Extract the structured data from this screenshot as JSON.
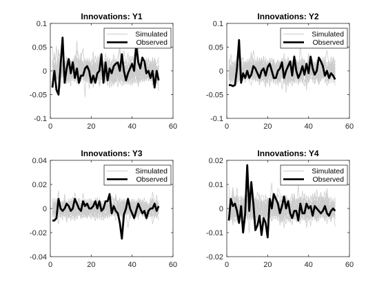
{
  "figure": {
    "background": "#ffffff"
  },
  "colors": {
    "simulated": "#cccccc",
    "observed": "#000000",
    "axes": "#262626"
  },
  "chart_data": [
    {
      "type": "line",
      "title": "Innovations: Y1",
      "xlabel": "",
      "ylabel": "",
      "xlim": [
        0,
        60
      ],
      "ylim": [
        -0.1,
        0.1
      ],
      "xticks": [
        0,
        20,
        40,
        60
      ],
      "yticks": [
        -0.1,
        -0.05,
        0,
        0.05,
        0.1
      ],
      "xtick_labels": [
        "0",
        "20",
        "40",
        "60"
      ],
      "ytick_labels": [
        "-0.1",
        "-0.05",
        "0",
        "0.05",
        "0.1"
      ],
      "legend": {
        "position": "top-right",
        "entries": [
          "Simulated",
          "Observed"
        ]
      },
      "simulated_band": {
        "x": [
          1,
          53
        ],
        "typical_range": [
          -0.05,
          0.05
        ],
        "extreme_range": [
          -0.08,
          0.08
        ]
      },
      "series": [
        {
          "name": "Observed",
          "x": [
            1,
            2,
            3,
            4,
            5,
            6,
            7,
            8,
            9,
            10,
            11,
            12,
            13,
            14,
            15,
            16,
            17,
            18,
            19,
            20,
            21,
            22,
            23,
            24,
            25,
            26,
            27,
            28,
            29,
            30,
            31,
            32,
            33,
            34,
            35,
            36,
            37,
            38,
            39,
            40,
            41,
            42,
            43,
            44,
            45,
            46,
            47,
            48,
            49,
            50,
            51,
            52,
            53
          ],
          "values": [
            -0.035,
            0.0,
            -0.04,
            -0.05,
            0.01,
            0.07,
            -0.025,
            0.005,
            0.025,
            -0.005,
            0.018,
            -0.015,
            0.005,
            -0.025,
            -0.01,
            -0.01,
            0.005,
            0.01,
            0.0,
            -0.025,
            -0.01,
            -0.025,
            -0.005,
            0.0,
            0.035,
            -0.025,
            0.018,
            -0.02,
            0.005,
            -0.005,
            0.01,
            0.015,
            0.018,
            0.0,
            0.035,
            0.0,
            -0.02,
            -0.005,
            0.005,
            0.015,
            0.0,
            0.055,
            0.018,
            0.005,
            0.028,
            0.02,
            -0.005,
            0.0,
            -0.015,
            0.0,
            -0.035,
            0.0,
            -0.02
          ]
        }
      ]
    },
    {
      "type": "line",
      "title": "Innovations: Y2",
      "xlabel": "",
      "ylabel": "",
      "xlim": [
        0,
        60
      ],
      "ylim": [
        -0.1,
        0.1
      ],
      "xticks": [
        0,
        20,
        40,
        60
      ],
      "yticks": [
        -0.1,
        -0.05,
        0,
        0.05,
        0.1
      ],
      "xtick_labels": [
        "0",
        "20",
        "40",
        "60"
      ],
      "ytick_labels": [
        "-0.1",
        "-0.05",
        "0",
        "0.05",
        "0.1"
      ],
      "legend": {
        "position": "top-right",
        "entries": [
          "Simulated",
          "Observed"
        ]
      },
      "simulated_band": {
        "x": [
          1,
          53
        ],
        "typical_range": [
          -0.05,
          0.05
        ],
        "extreme_range": [
          -0.065,
          0.065
        ]
      },
      "series": [
        {
          "name": "Observed",
          "x": [
            1,
            2,
            3,
            4,
            5,
            6,
            7,
            8,
            9,
            10,
            11,
            12,
            13,
            14,
            15,
            16,
            17,
            18,
            19,
            20,
            21,
            22,
            23,
            24,
            25,
            26,
            27,
            28,
            29,
            30,
            31,
            32,
            33,
            34,
            35,
            36,
            37,
            38,
            39,
            40,
            41,
            42,
            43,
            44,
            45,
            46,
            47,
            48,
            49,
            50,
            51,
            52,
            53
          ],
          "values": [
            -0.03,
            -0.03,
            -0.032,
            -0.03,
            0.005,
            0.065,
            -0.025,
            -0.005,
            -0.015,
            0.0,
            -0.015,
            -0.008,
            0.01,
            0.005,
            -0.005,
            -0.015,
            0.0,
            0.005,
            -0.01,
            0.008,
            0.015,
            0.0,
            -0.015,
            -0.015,
            0.0,
            0.005,
            0.018,
            -0.015,
            0.0,
            0.01,
            0.02,
            -0.01,
            0.03,
            0.0,
            -0.015,
            -0.005,
            0.01,
            -0.008,
            0.015,
            -0.005,
            0.03,
            0.005,
            -0.008,
            0.0,
            0.028,
            0.02,
            0.01,
            -0.01,
            0.0,
            -0.015,
            -0.005,
            -0.01,
            -0.018
          ]
        }
      ]
    },
    {
      "type": "line",
      "title": "Innovations: Y3",
      "xlabel": "",
      "ylabel": "",
      "xlim": [
        0,
        60
      ],
      "ylim": [
        -0.04,
        0.04
      ],
      "xticks": [
        0,
        20,
        40,
        60
      ],
      "yticks": [
        -0.04,
        -0.02,
        0,
        0.02,
        0.04
      ],
      "xtick_labels": [
        "0",
        "20",
        "40",
        "60"
      ],
      "ytick_labels": [
        "-0.04",
        "-0.02",
        "0",
        "0.02",
        "0.04"
      ],
      "legend": {
        "position": "top-right",
        "entries": [
          "Simulated",
          "Observed"
        ]
      },
      "simulated_band": {
        "x": [
          1,
          53
        ],
        "typical_range": [
          -0.015,
          0.015
        ],
        "extreme_range": [
          -0.03,
          0.025
        ]
      },
      "series": [
        {
          "name": "Observed",
          "x": [
            1,
            2,
            3,
            4,
            5,
            6,
            7,
            8,
            9,
            10,
            11,
            12,
            13,
            14,
            15,
            16,
            17,
            18,
            19,
            20,
            21,
            22,
            23,
            24,
            25,
            26,
            27,
            28,
            29,
            30,
            31,
            32,
            33,
            34,
            35,
            36,
            37,
            38,
            39,
            40,
            41,
            42,
            43,
            44,
            45,
            46,
            47,
            48,
            49,
            50,
            51,
            52,
            53
          ],
          "values": [
            -0.01,
            -0.01,
            -0.008,
            0.008,
            0.0,
            -0.002,
            0.0,
            0.004,
            0.002,
            -0.002,
            0.0,
            0.008,
            0.004,
            0.0,
            -0.002,
            0.006,
            0.002,
            0.004,
            0.0,
            0.0,
            0.002,
            0.006,
            0.0,
            0.006,
            -0.002,
            0.0,
            0.006,
            0.006,
            0.012,
            -0.004,
            0.002,
            -0.002,
            -0.004,
            -0.012,
            -0.025,
            -0.005,
            0.0,
            0.008,
            0.0,
            -0.004,
            -0.008,
            -0.002,
            0.004,
            0.0,
            -0.004,
            -0.002,
            -0.008,
            -0.002,
            0.0,
            0.0,
            0.004,
            -0.002,
            0.002
          ]
        }
      ]
    },
    {
      "type": "line",
      "title": "Innovations: Y4",
      "xlabel": "",
      "ylabel": "",
      "xlim": [
        0,
        60
      ],
      "ylim": [
        -0.02,
        0.02
      ],
      "xticks": [
        0,
        20,
        40,
        60
      ],
      "yticks": [
        -0.02,
        -0.01,
        0,
        0.01,
        0.02
      ],
      "xtick_labels": [
        "0",
        "20",
        "40",
        "60"
      ],
      "ytick_labels": [
        "-0.02",
        "-0.01",
        "0",
        "0.01",
        "0.02"
      ],
      "legend": {
        "position": "top-right",
        "entries": [
          "Simulated",
          "Observed"
        ]
      },
      "simulated_band": {
        "x": [
          1,
          53
        ],
        "typical_range": [
          -0.01,
          0.01
        ],
        "extreme_range": [
          -0.015,
          0.012
        ]
      },
      "series": [
        {
          "name": "Observed",
          "x": [
            1,
            2,
            3,
            4,
            5,
            6,
            7,
            8,
            9,
            10,
            11,
            12,
            13,
            14,
            15,
            16,
            17,
            18,
            19,
            20,
            21,
            22,
            23,
            24,
            25,
            26,
            27,
            28,
            29,
            30,
            31,
            32,
            33,
            34,
            35,
            36,
            37,
            38,
            39,
            40,
            41,
            42,
            43,
            44,
            45,
            46,
            47,
            48,
            49,
            50,
            51,
            52,
            53
          ],
          "values": [
            -0.005,
            0.004,
            0.001,
            0.002,
            -0.001,
            -0.006,
            0.001,
            -0.01,
            -0.002,
            0.018,
            -0.001,
            0.011,
            0.002,
            -0.009,
            -0.007,
            -0.003,
            -0.011,
            -0.004,
            -0.006,
            -0.012,
            0.004,
            0.0,
            0.006,
            0.004,
            0.002,
            -0.002,
            0.001,
            0.005,
            0.0,
            0.003,
            -0.002,
            -0.004,
            -0.001,
            -0.001,
            -0.005,
            0.002,
            -0.002,
            -0.002,
            0.002,
            0.0,
            0.001,
            -0.003,
            0.001,
            0.0,
            -0.001,
            -0.002,
            -0.001,
            0.001,
            -0.002,
            -0.003,
            -0.001,
            0.0,
            -0.001
          ]
        }
      ]
    }
  ]
}
